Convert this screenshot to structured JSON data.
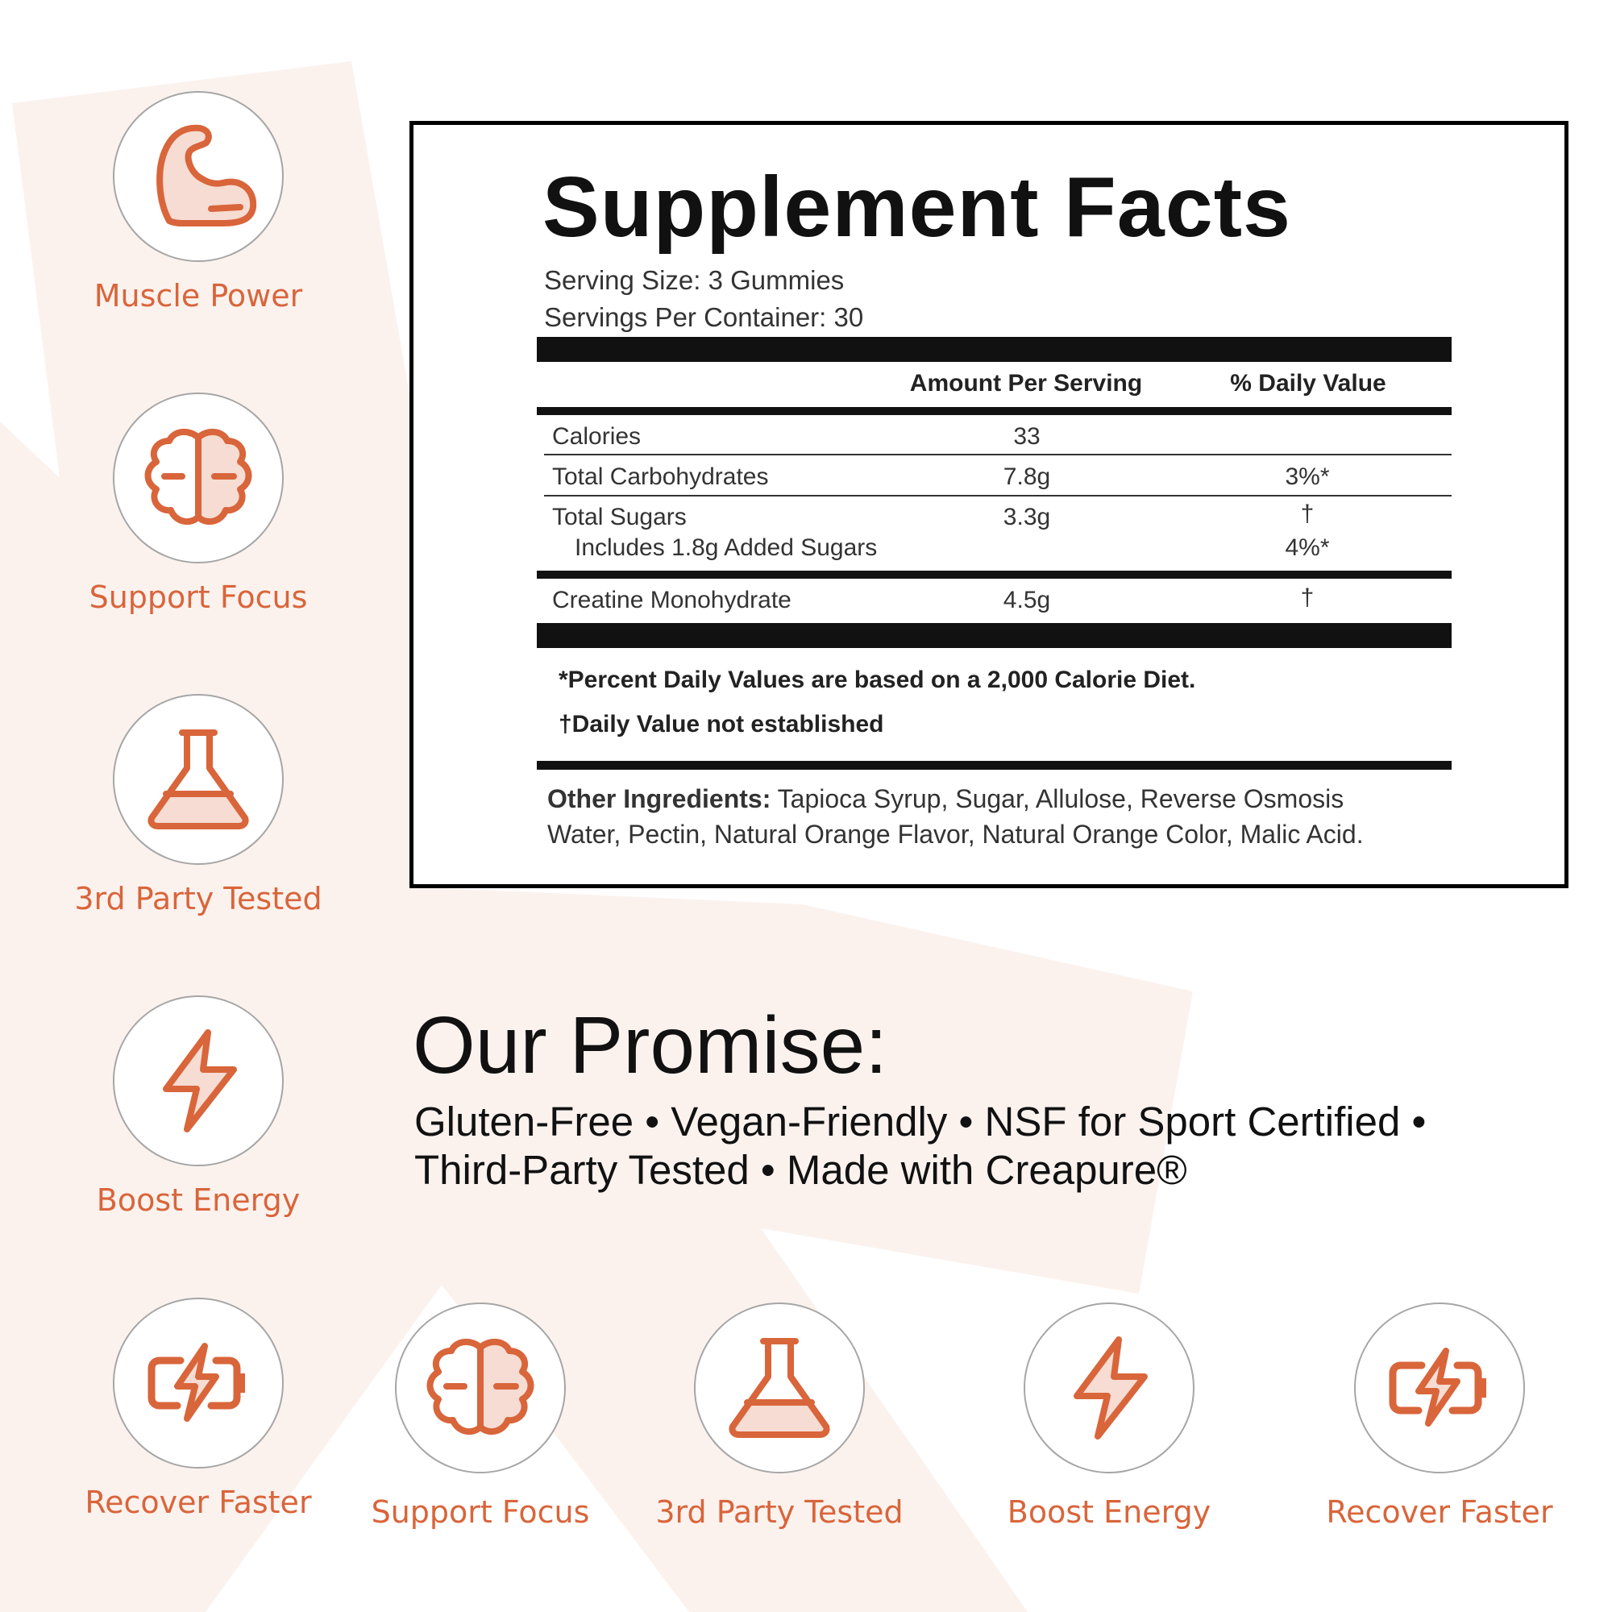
{
  "colors": {
    "accent": "#d9653b",
    "accent_light": "#f6dcd2",
    "background_shape": "#fbf2ee"
  },
  "badges_left": [
    {
      "icon": "flexed-arm-icon",
      "label": "Muscle Power"
    },
    {
      "icon": "brain-icon",
      "label": "Support Focus"
    },
    {
      "icon": "flask-icon",
      "label": "3rd Party Tested"
    },
    {
      "icon": "lightning-bolt-icon",
      "label": "Boost Energy"
    },
    {
      "icon": "battery-charging-icon",
      "label": "Recover Faster"
    }
  ],
  "badges_bottom": [
    {
      "icon": "brain-icon",
      "label": "Support Focus"
    },
    {
      "icon": "flask-icon",
      "label": "3rd Party Tested"
    },
    {
      "icon": "lightning-bolt-icon",
      "label": "Boost Energy"
    },
    {
      "icon": "battery-charging-icon",
      "label": "Recover Faster"
    }
  ],
  "facts": {
    "title": "Supplement Facts",
    "serving_size": "Serving Size: 3 Gummies",
    "servings_per_container": "Servings Per Container: 30",
    "header_amount": "Amount Per Serving",
    "header_dv": "% Daily Value",
    "rows": [
      {
        "name": "Calories",
        "amount": "33",
        "dv": ""
      },
      {
        "name": "Total Carbohydrates",
        "amount": "7.8g",
        "dv": "3%*"
      },
      {
        "name": "Total Sugars",
        "amount": "3.3g",
        "dv": "†"
      },
      {
        "name": "Includes 1.8g Added Sugars",
        "amount": "",
        "dv": "4%*"
      },
      {
        "name": "Creatine Monohydrate",
        "amount": "4.5g",
        "dv": "†"
      }
    ],
    "footnote_1": "*Percent Daily Values are based on a 2,000 Calorie Diet.",
    "footnote_2": "†Daily Value not established",
    "other_label": "Other Ingredients:",
    "other_line1": " Tapioca Syrup, Sugar, Allulose, Reverse Osmosis",
    "other_line2": "Water, Pectin, Natural Orange Flavor, Natural Orange Color, Malic Acid."
  },
  "promise": {
    "title": "Our Promise:",
    "line1": "Gluten-Free • Vegan-Friendly • NSF for Sport Certified •",
    "line2": "Third-Party Tested • Made with Creapure®"
  }
}
